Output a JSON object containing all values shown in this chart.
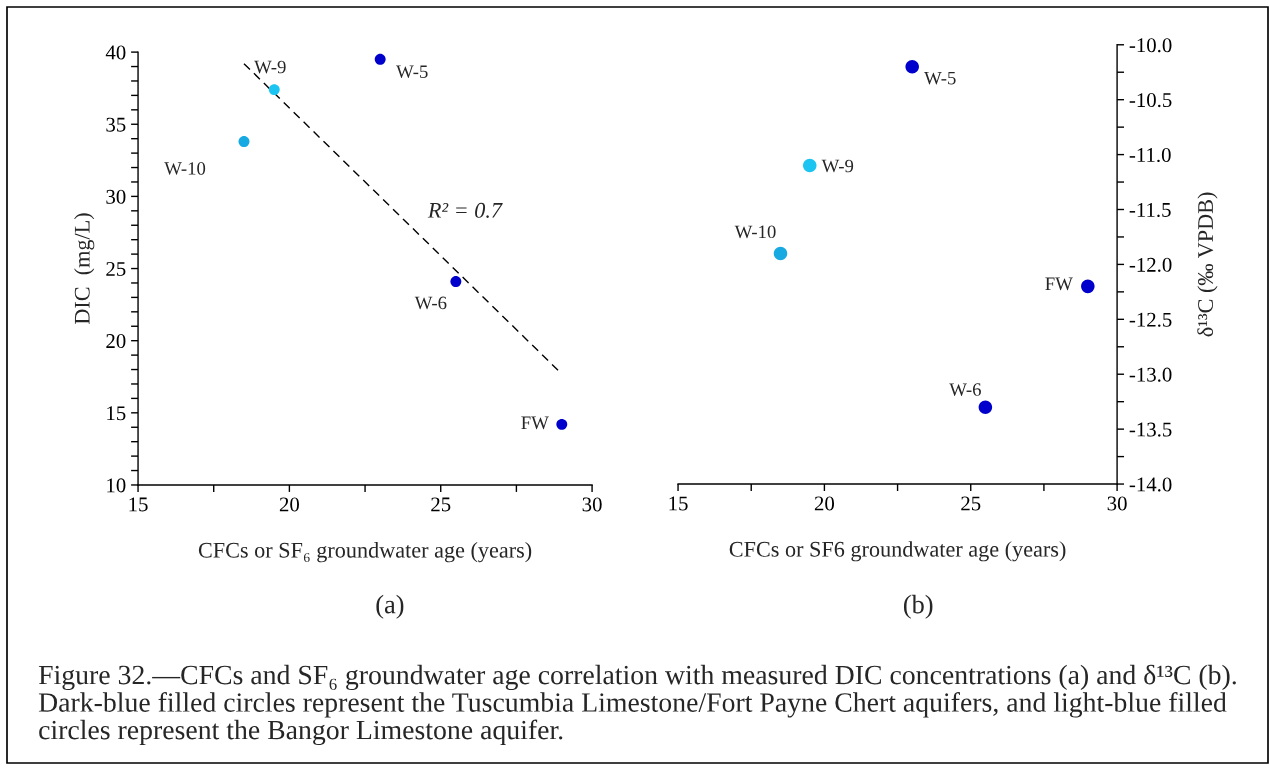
{
  "chart_data": [
    {
      "type": "scatter",
      "xlabel": "CFCs or SF₆ groundwater age (years)",
      "ylabel": "DIC  (mg/L)",
      "marker": "circle",
      "xlim": [
        15,
        30
      ],
      "xticks": [
        15,
        {
          "value": 17.5,
          "label": null
        },
        20,
        {
          "value": 22.5,
          "label": null
        },
        25,
        {
          "value": 27.5,
          "label": null
        },
        30
      ],
      "ylim": [
        10,
        40
      ],
      "yticks": [
        10,
        {
          "value": 11,
          "label": null
        },
        {
          "value": 12,
          "label": null
        },
        {
          "value": 13,
          "label": null
        },
        {
          "value": 14,
          "label": null
        },
        15,
        {
          "value": 16,
          "label": null
        },
        {
          "value": 17,
          "label": null
        },
        {
          "value": 18,
          "label": null
        },
        {
          "value": 19,
          "label": null
        },
        20,
        {
          "value": 21,
          "label": null
        },
        {
          "value": 22,
          "label": null
        },
        {
          "value": 23,
          "label": null
        },
        {
          "value": 24,
          "label": null
        },
        25,
        {
          "value": 26,
          "label": null
        },
        {
          "value": 27,
          "label": null
        },
        {
          "value": 28,
          "label": null
        },
        {
          "value": 29,
          "label": null
        },
        30,
        {
          "value": 31,
          "label": null
        },
        {
          "value": 32,
          "label": null
        },
        {
          "value": 33,
          "label": null
        },
        {
          "value": 34,
          "label": null
        },
        35,
        {
          "value": 36,
          "label": null
        },
        {
          "value": 37,
          "label": null
        },
        {
          "value": 38,
          "label": null
        },
        {
          "value": 39,
          "label": null
        },
        40
      ],
      "series": [
        {
          "x": [
            18.5,
            19.5,
            23.0,
            25.5,
            29.0
          ],
          "values": [
            33.8,
            37.4,
            39.5,
            24.1,
            14.2
          ],
          "colors": [
            "#17a9e1",
            "#1cc4f2",
            "#0000cc",
            "#0000cc",
            "#0000cc"
          ]
        },
        {
          "type": "line",
          "x": [
            18.5,
            28.9
          ],
          "values": [
            39.2,
            17.9
          ],
          "color": "#000000",
          "line_style": "dashed",
          "marker": "none"
        }
      ],
      "annotations": [
        "W-10",
        {
          "text": "W-9",
          "x": 19.5,
          "y": 37.4
        },
        {
          "text": "W-5",
          "x": 23.0,
          "y": 39.5
        },
        {
          "text": "W-6",
          "x": 25.5,
          "y": 24.1
        },
        {
          "text": "FW",
          "x": 29.0,
          "y": 14.2
        },
        "R² = 0.7",
        "(a)"
      ]
    },
    {
      "type": "scatter",
      "xlabel": "CFCs or SF6 groundwater age (years)",
      "ylabel": "δ¹³C (‰ VPDB)",
      "marker": "circle",
      "xlim": [
        15,
        30
      ],
      "xticks": [
        15,
        {
          "value": 17.5,
          "label": null
        },
        20,
        {
          "value": 22.5,
          "label": null
        },
        25,
        {
          "value": 27.5,
          "label": null
        },
        30
      ],
      "ylim": [
        -14,
        -10
      ],
      "yticks": [
        {
          "value": -14,
          "label": "-14.0"
        },
        {
          "value": -13.75,
          "label": null
        },
        {
          "value": -13.5,
          "label": "-13.5"
        },
        {
          "value": -13.25,
          "label": null
        },
        {
          "value": -13,
          "label": "-13.0"
        },
        {
          "value": -12.75,
          "label": null
        },
        {
          "value": -12.5,
          "label": "-12.5"
        },
        {
          "value": -12.25,
          "label": null
        },
        {
          "value": -12,
          "label": "-12.0"
        },
        {
          "value": -11.75,
          "label": null
        },
        {
          "value": -11.5,
          "label": "-11.5"
        },
        {
          "value": -11.25,
          "label": null
        },
        {
          "value": -11,
          "label": "-11.0"
        },
        {
          "value": -10.75,
          "label": null
        },
        {
          "value": -10.5,
          "label": "-10.5"
        },
        {
          "value": -10.25,
          "label": null
        },
        {
          "value": -10,
          "label": "-10.0"
        }
      ],
      "series": [
        {
          "x": [
            18.5,
            19.5,
            23.0,
            25.5,
            29.0
          ],
          "values": [
            -11.9,
            -11.1,
            -10.2,
            -13.3,
            -12.2
          ],
          "colors": [
            "#17a9e1",
            "#1cc4f2",
            "#0000cc",
            "#0000cc",
            "#0000cc"
          ]
        }
      ],
      "annotations": [
        {
          "text": "W-10",
          "x": 18.5,
          "y": -11.9
        },
        {
          "text": "W-9",
          "x": 19.5,
          "y": -11.1
        },
        {
          "text": "W-5",
          "x": 23.0,
          "y": -10.2
        },
        {
          "text": "W-6",
          "x": 25.5,
          "y": -13.3
        },
        {
          "text": "FW",
          "x": 29.0,
          "y": -12.2
        },
        "(b)",
        "Figure 32.—CFCs and SF₆ groundwater age correlation with measured DIC concentrations (a) and δ¹³C (b). Dark-blue filled circles represent the Tuscumbia Limestone/Fort Payne Chert aquifers, and light-blue filled circles represent the Bangor Limestone aquifer."
      ]
    }
  ]
}
